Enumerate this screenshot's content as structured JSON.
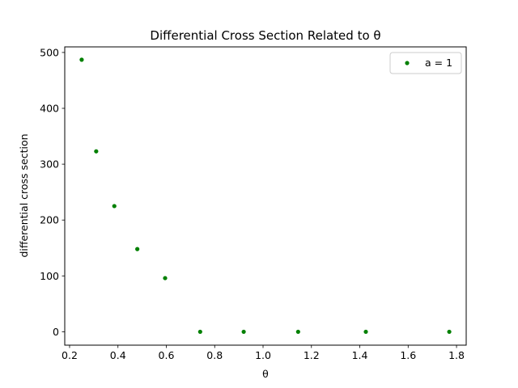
{
  "chart_data": {
    "type": "scatter",
    "title": "Differential Cross Section Related to θ",
    "xlabel": "θ",
    "ylabel": "differential cross section",
    "xlim": [
      0.18,
      1.84
    ],
    "ylim": [
      -24,
      510
    ],
    "xticks": [
      0.2,
      0.4,
      0.6,
      0.8,
      1.0,
      1.2,
      1.4,
      1.6,
      1.8
    ],
    "xtick_labels": [
      "0.2",
      "0.4",
      "0.6",
      "0.8",
      "1.0",
      "1.2",
      "1.4",
      "1.6",
      "1.8"
    ],
    "yticks": [
      0,
      100,
      200,
      300,
      400,
      500
    ],
    "ytick_labels": [
      "0",
      "100",
      "200",
      "300",
      "400",
      "500"
    ],
    "grid": false,
    "legend_position": "top-right",
    "series": [
      {
        "name": "a = 1",
        "color": "#008000",
        "marker": "circle",
        "x": [
          0.25,
          0.31,
          0.385,
          0.48,
          0.595,
          0.74,
          0.92,
          1.145,
          1.425,
          1.77
        ],
        "y": [
          487,
          323,
          225,
          148,
          96,
          0,
          0,
          0,
          0,
          0
        ]
      }
    ]
  }
}
